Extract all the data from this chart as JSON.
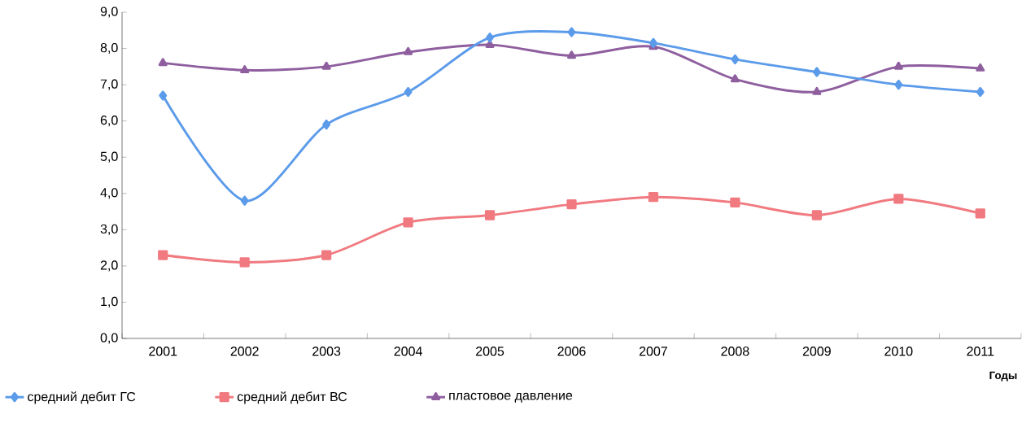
{
  "chart_data": {
    "type": "line",
    "xlabel": "Годы",
    "categories": [
      "2001",
      "2002",
      "2003",
      "2004",
      "2005",
      "2006",
      "2007",
      "2008",
      "2009",
      "2010",
      "2011"
    ],
    "series": [
      {
        "name": "средний дебит ГС",
        "color": "#5b9bea",
        "marker": "diamond",
        "values": [
          6.7,
          3.8,
          5.9,
          6.8,
          8.3,
          8.45,
          8.15,
          7.7,
          7.35,
          7.0,
          6.8
        ]
      },
      {
        "name": "средний дебит ВС",
        "color": "#f07a80",
        "marker": "square",
        "values": [
          2.3,
          2.1,
          2.3,
          3.2,
          3.4,
          3.7,
          3.9,
          3.75,
          3.4,
          3.85,
          3.45
        ]
      },
      {
        "name": "пластовое давление",
        "color": "#8e5e9e",
        "marker": "triangle",
        "values": [
          7.6,
          7.4,
          7.5,
          7.9,
          8.1,
          7.8,
          8.05,
          7.15,
          6.8,
          7.5,
          7.45
        ]
      }
    ],
    "ylim": [
      0,
      9
    ],
    "yticks": [
      {
        "value": 0,
        "label": "0,0"
      },
      {
        "value": 1,
        "label": "1,0"
      },
      {
        "value": 2,
        "label": "2,0"
      },
      {
        "value": 3,
        "label": "3,0"
      },
      {
        "value": 4,
        "label": "4,0"
      },
      {
        "value": 5,
        "label": "5,0"
      },
      {
        "value": 6,
        "label": "6,0"
      },
      {
        "value": 7,
        "label": "7,0"
      },
      {
        "value": 8,
        "label": "8,0"
      },
      {
        "value": 9,
        "label": "9,0"
      }
    ],
    "grid": false,
    "legend": "bottom"
  }
}
